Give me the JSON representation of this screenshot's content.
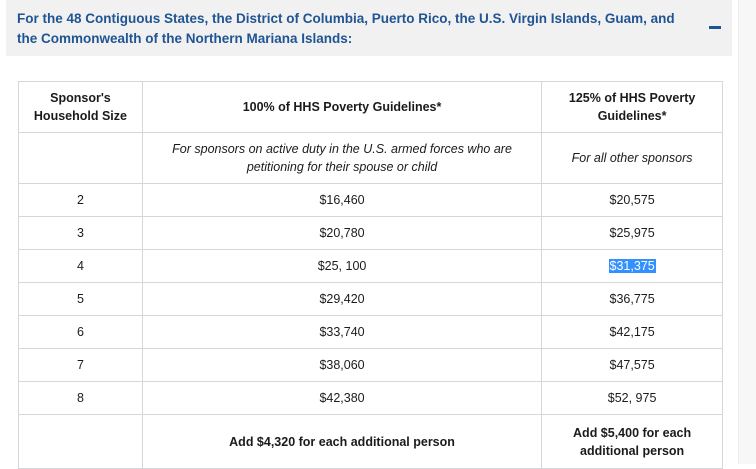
{
  "accordion": {
    "title": "For the 48 Contiguous States, the District of Columbia, Puerto Rico, the U.S. Virgin Islands, Guam, and the Commonwealth of the Northern Mariana Islands:",
    "toggle_icon": "minus-icon"
  },
  "table": {
    "headers": [
      "Sponsor's Household Size",
      "100% of HHS Poverty Guidelines*",
      "125% of HHS Poverty Guidelines*"
    ],
    "note_row": [
      "",
      "For sponsors on active duty in the U.S. armed forces who are petitioning for their spouse or child",
      "For all other sponsors"
    ],
    "rows": [
      [
        "2",
        "$16,460",
        "$20,575"
      ],
      [
        "3",
        "$20,780",
        "$25,975"
      ],
      [
        "4",
        "$25, 100",
        "$31,375"
      ],
      [
        "5",
        "$29,420",
        "$36,775"
      ],
      [
        "6",
        "$33,740",
        "$42,175"
      ],
      [
        "7",
        "$38,060",
        "$47,575"
      ],
      [
        "8",
        "$42,380",
        "$52, 975"
      ]
    ],
    "footer": [
      "",
      "Add $4,320 for each additional person",
      "Add $5,400 for each additional person"
    ],
    "selected_text": "$31,375"
  },
  "colors": {
    "accent": "#205493",
    "header_bg": "#f1f1f1",
    "selection": "#3390ff"
  }
}
